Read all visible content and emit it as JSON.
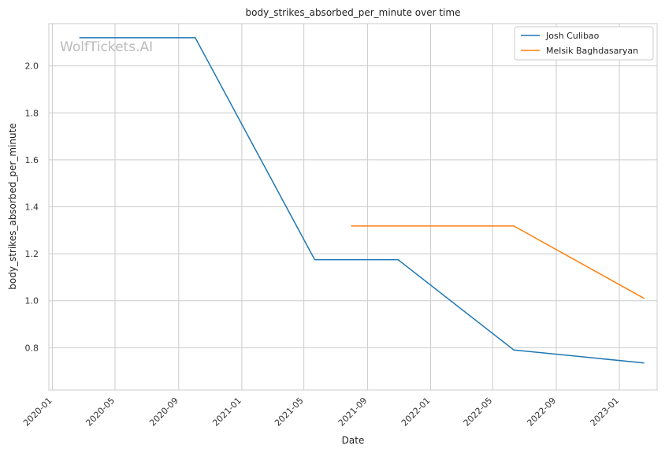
{
  "chart_data": {
    "type": "line",
    "title": "body_strikes_absorbed_per_minute over time",
    "xlabel": "Date",
    "ylabel": "body_strikes_absorbed_per_minute",
    "watermark": "WolfTickets.AI",
    "x_ticks": [
      "2020-01",
      "2020-05",
      "2020-09",
      "2021-01",
      "2021-05",
      "2021-09",
      "2022-01",
      "2022-05",
      "2022-09",
      "2023-01"
    ],
    "y_ticks": [
      0.8,
      1.0,
      1.2,
      1.4,
      1.6,
      1.8,
      2.0
    ],
    "xlim": [
      "2019-12-25",
      "2023-03-15"
    ],
    "ylim": [
      0.62,
      2.18
    ],
    "grid": true,
    "legend_position": "top-right",
    "series": [
      {
        "name": "Josh Culibao",
        "color": "#1f77b4",
        "points": [
          {
            "x": "2020-02-22",
            "y": 2.12
          },
          {
            "x": "2020-10-03",
            "y": 2.12
          },
          {
            "x": "2021-05-22",
            "y": 1.175
          },
          {
            "x": "2021-10-30",
            "y": 1.175
          },
          {
            "x": "2022-06-11",
            "y": 0.79
          },
          {
            "x": "2023-02-18",
            "y": 0.735
          }
        ]
      },
      {
        "name": "Melsik Baghdasaryan",
        "color": "#ff7f0e",
        "points": [
          {
            "x": "2021-07-31",
            "y": 1.318
          },
          {
            "x": "2022-06-11",
            "y": 1.318
          },
          {
            "x": "2023-02-18",
            "y": 1.01
          }
        ]
      }
    ]
  }
}
